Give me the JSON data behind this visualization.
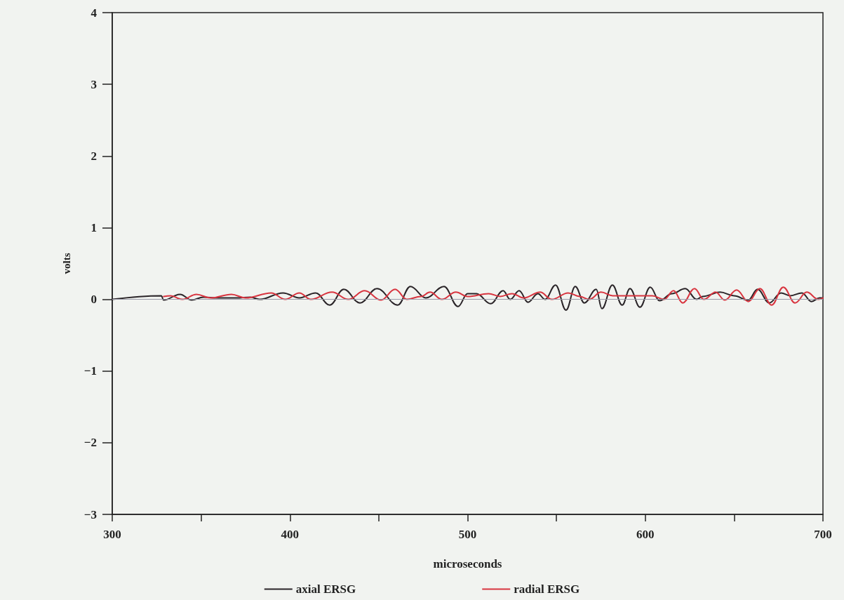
{
  "chart_data": {
    "type": "line",
    "xlabel": "microseconds",
    "ylabel": "volts",
    "xlim": [
      300,
      700
    ],
    "ylim": [
      -3,
      4
    ],
    "xticks": [
      300,
      {
        "value": 350,
        "label": null
      },
      400,
      {
        "value": 450,
        "label": null
      },
      500,
      {
        "value": 550,
        "label": null
      },
      600,
      {
        "value": 650,
        "label": null
      },
      700
    ],
    "yticks": [
      -3,
      -2,
      -1,
      0,
      1,
      2,
      3,
      4
    ],
    "grid": false,
    "legend": "bottom",
    "marker": "none",
    "line_style": "solid",
    "ref_lines": [
      {
        "axis": "y",
        "value": 0,
        "color": "#9a9aa8"
      }
    ],
    "series": [
      {
        "name": "axial ERSG",
        "color": "#2a2428",
        "x": [
          300,
          327.6,
          328.9,
          338.2,
          344.7,
          351.3,
          359.2,
          369.8,
          377.7,
          382.9,
          396.1,
          405.3,
          414.5,
          422.4,
          430.3,
          439.4,
          449,
          460.7,
          467.8,
          476.5,
          486.7,
          494.6,
          500,
          505,
          513,
          520,
          524,
          529,
          534,
          539.6,
          543.6,
          549.5,
          555.4,
          560.6,
          565.7,
          572.4,
          575.6,
          581.5,
          587,
          591.4,
          597,
          602.8,
          608,
          615,
          622.5,
          628.9,
          632.3,
          642.1,
          650,
          657.9,
          663.2,
          669.8,
          676.4,
          681.6,
          688.2,
          693.5,
          698.1,
          700
        ],
        "values": [
          0,
          0.05,
          -0.01,
          0.07,
          -0.01,
          0.03,
          0.02,
          0.02,
          0.03,
          0,
          0.09,
          0.02,
          0.09,
          -0.08,
          0.14,
          -0.05,
          0.15,
          -0.08,
          0.18,
          0.02,
          0.18,
          -0.1,
          0.08,
          0.08,
          -0.06,
          0.12,
          0,
          0.12,
          -0.04,
          0.08,
          0,
          0.2,
          -0.15,
          0.18,
          -0.05,
          0.14,
          -0.13,
          0.2,
          -0.08,
          0.15,
          -0.11,
          0.17,
          -0.02,
          0.08,
          0.15,
          0,
          0.04,
          0.1,
          0.05,
          -0.01,
          0.14,
          -0.05,
          0.09,
          0.05,
          0.09,
          -0.03,
          0.02,
          0.02
        ]
      },
      {
        "name": "radial ERSG",
        "color": "#d8343f",
        "x": [
          328.9,
          332.9,
          339.5,
          347.4,
          355.3,
          367.1,
          375,
          389.5,
          397.4,
          405.3,
          411.8,
          423.7,
          432.9,
          442.1,
          451.3,
          459.2,
          465.8,
          473.7,
          478.9,
          485.5,
          493.4,
          500,
          511.8,
          518.4,
          525,
          531.6,
          540.8,
          547.4,
          556.6,
          563.1,
          568.5,
          575.1,
          581.7,
          593.5,
          604,
          610.6,
          615.9,
          621.1,
          627.7,
          633,
          639.5,
          644.8,
          651.4,
          658,
          664.5,
          671.1,
          677.7,
          684.3,
          690.9,
          697.4,
          700
        ],
        "values": [
          0.04,
          0.05,
          0,
          0.07,
          0.02,
          0.07,
          0.02,
          0.09,
          0,
          0.09,
          0,
          0.1,
          0,
          0.12,
          -0.01,
          0.14,
          0,
          0.04,
          0.1,
          0,
          0.1,
          0.04,
          0.08,
          0.04,
          0.08,
          0.02,
          0.1,
          0,
          0.09,
          0.04,
          0,
          0.1,
          0.05,
          0.05,
          0.05,
          0,
          0.12,
          -0.05,
          0.15,
          0,
          0.1,
          -0.01,
          0.13,
          -0.03,
          0.15,
          -0.08,
          0.17,
          -0.05,
          0.1,
          0,
          0.02
        ]
      }
    ]
  }
}
